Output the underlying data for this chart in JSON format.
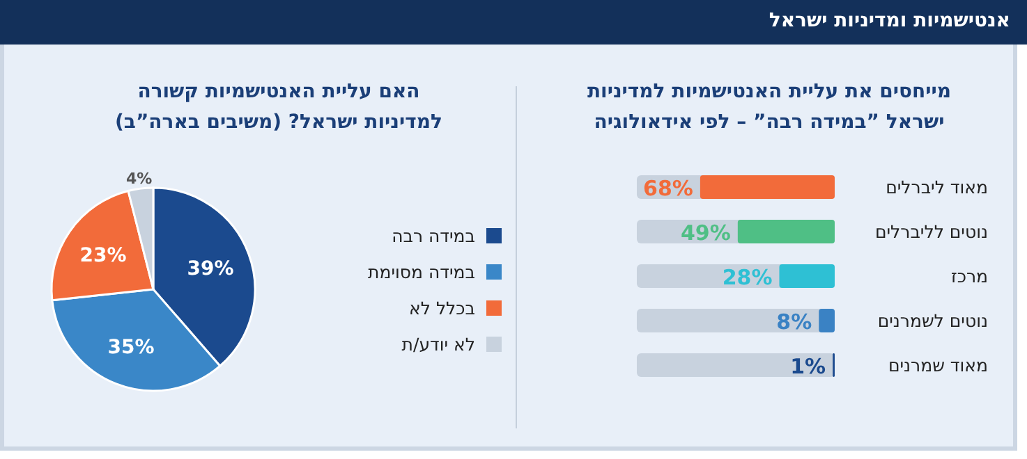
{
  "chart_data": [
    {
      "type": "bar",
      "orientation": "horizontal",
      "title": "אנטישמיות ומדיניות ישראל",
      "subtitle": "מייחסים את עליית האנטישמיות למדיניות ישראל ”במידה רבה” – לפי אידאולוגיה",
      "categories": [
        "מאוד ליברלים",
        "נוטים לליברלים",
        "מרכז",
        "נוטים לשמרנים",
        "מאוד שמרנים"
      ],
      "values": [
        68,
        49,
        28,
        8,
        1
      ],
      "colors": [
        "#f26b3a",
        "#4fbf85",
        "#2ec0d4",
        "#3a82c4",
        "#1b4a8e"
      ],
      "value_labels": [
        "68%",
        "49%",
        "28%",
        "8%",
        "1%"
      ],
      "xlim": [
        100,
        0
      ],
      "tick_labels": "y"
    },
    {
      "type": "pie",
      "title": "האם עליית האנטישמיות קשורה למדיניות ישראל? (משיבים בארה”ב)",
      "categories": [
        "במידה רבה",
        "במידה מסוימת",
        "בכלל לא",
        "לא יודע/ת"
      ],
      "values": [
        39,
        35,
        23,
        4
      ],
      "colors": [
        "#1b4a8e",
        "#3a87c8",
        "#f26b3a",
        "#c8d2de"
      ],
      "value_labels": [
        "39%",
        "35%",
        "23%",
        "4%"
      ],
      "legend": "right"
    }
  ]
}
